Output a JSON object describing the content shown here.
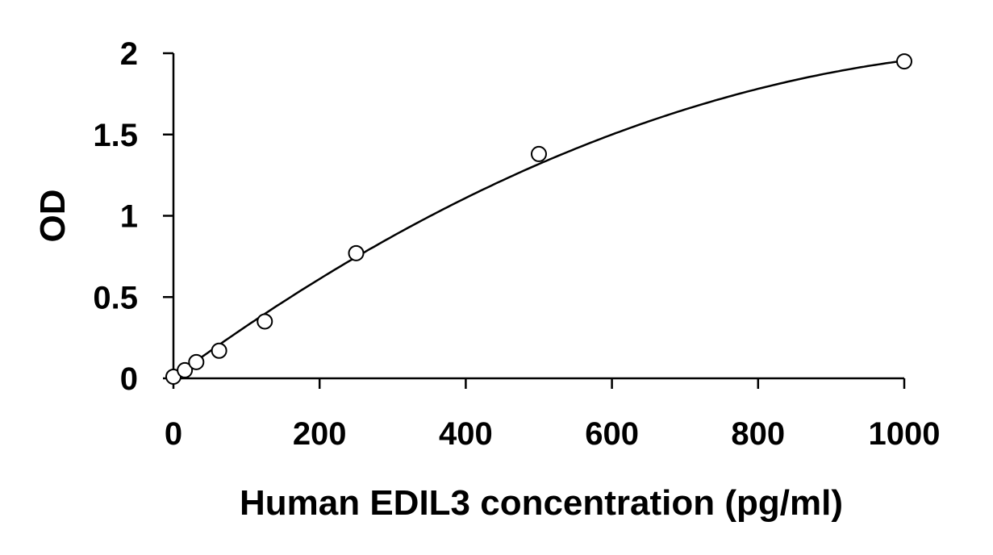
{
  "chart_data": {
    "type": "scatter",
    "title": "",
    "xlabel": "Human EDIL3 concentration (pg/ml)",
    "ylabel": "OD",
    "xlim": [
      0,
      1000
    ],
    "ylim": [
      0,
      2
    ],
    "xticks": [
      0,
      200,
      400,
      600,
      800,
      1000
    ],
    "yticks": [
      0,
      0.5,
      1,
      1.5,
      2
    ],
    "xtick_labels": [
      "0",
      "200",
      "400",
      "600",
      "800",
      "1000"
    ],
    "ytick_labels": [
      "0",
      "0.5",
      "1",
      "1.5",
      "2"
    ],
    "grid": false,
    "legend": "none",
    "marker": "open-circle",
    "colors": {
      "axis": "#000000",
      "curve": "#000000",
      "marker_stroke": "#000000",
      "marker_fill": "#ffffff"
    },
    "series": [
      {
        "x": [
          0,
          15.6,
          31.25,
          62.5,
          125,
          250,
          500,
          1000
        ],
        "y": [
          0.01,
          0.05,
          0.1,
          0.17,
          0.35,
          0.77,
          1.38,
          1.95
        ]
      }
    ],
    "fit_curve": {
      "type": "polynomial-2",
      "coefficients": [
        0.005,
        0.003304,
        -1.355e-06
      ]
    }
  }
}
